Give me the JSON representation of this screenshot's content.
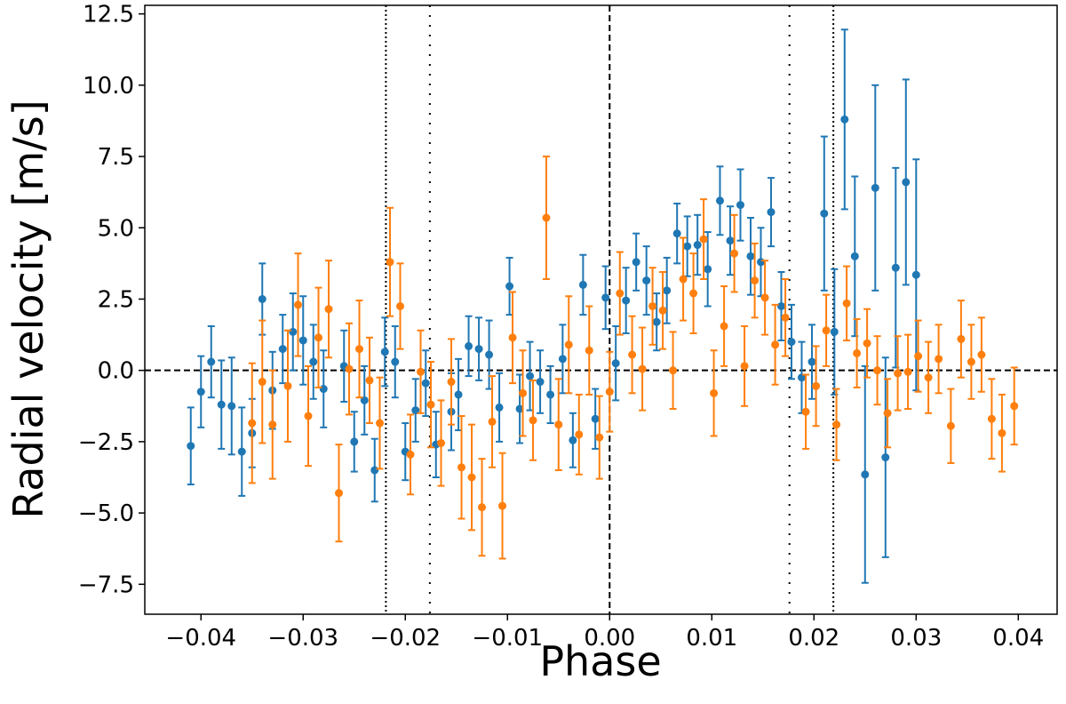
{
  "chart_data": {
    "type": "scatter",
    "title": "",
    "xlabel": "Phase",
    "ylabel": "Radial velocity [m/s]",
    "xlim": [
      -0.0455,
      0.0438
    ],
    "ylim": [
      -8.55,
      12.8
    ],
    "x_ticks": [
      -0.04,
      -0.03,
      -0.02,
      -0.01,
      0.0,
      0.01,
      0.02,
      0.03,
      0.04
    ],
    "x_tick_labels": [
      "−0.04",
      "−0.03",
      "−0.02",
      "−0.01",
      "0.00",
      "0.01",
      "0.02",
      "0.03",
      "0.04"
    ],
    "y_ticks": [
      -7.5,
      -5.0,
      -2.5,
      0.0,
      2.5,
      5.0,
      7.5,
      10.0,
      12.5
    ],
    "y_tick_labels": [
      "−7.5",
      "−5.0",
      "−2.5",
      "0.0",
      "2.5",
      "5.0",
      "7.5",
      "10.0",
      "12.5"
    ],
    "grid": false,
    "legend": "none",
    "reference_lines": {
      "horizontal_dashed_y": 0.0,
      "vertical_dashed_x": 0.0,
      "vertical_dotted_x": [
        -0.0219,
        -0.0176,
        0.0176,
        0.0219
      ]
    },
    "series": [
      {
        "color": "#1f77b4",
        "points": [
          {
            "x": -0.041,
            "y": -2.65,
            "err": 1.35
          },
          {
            "x": -0.04,
            "y": -0.75,
            "err": 1.25
          },
          {
            "x": -0.039,
            "y": 0.3,
            "err": 1.25
          },
          {
            "x": -0.038,
            "y": -1.2,
            "err": 1.55
          },
          {
            "x": -0.037,
            "y": -1.25,
            "err": 1.7
          },
          {
            "x": -0.036,
            "y": -2.85,
            "err": 1.55
          },
          {
            "x": -0.035,
            "y": -2.2,
            "err": 1.2
          },
          {
            "x": -0.034,
            "y": 2.5,
            "err": 1.25
          },
          {
            "x": -0.033,
            "y": -0.7,
            "err": 1.35
          },
          {
            "x": -0.032,
            "y": 0.75,
            "err": 1.2
          },
          {
            "x": -0.031,
            "y": 1.35,
            "err": 1.35
          },
          {
            "x": -0.03,
            "y": 1.05,
            "err": 1.55
          },
          {
            "x": -0.029,
            "y": 0.3,
            "err": 1.3
          },
          {
            "x": -0.028,
            "y": -0.65,
            "err": 1.35
          },
          {
            "x": -0.026,
            "y": 0.15,
            "err": 1.25
          },
          {
            "x": -0.025,
            "y": -2.5,
            "err": 1.05
          },
          {
            "x": -0.024,
            "y": -1.05,
            "err": 1.2
          },
          {
            "x": -0.023,
            "y": -3.5,
            "err": 1.1
          },
          {
            "x": -0.022,
            "y": 0.65,
            "err": 1.2
          },
          {
            "x": -0.021,
            "y": 0.3,
            "err": 1.25
          },
          {
            "x": -0.02,
            "y": -2.85,
            "err": 1.0
          },
          {
            "x": -0.019,
            "y": -1.4,
            "err": 1.1
          },
          {
            "x": -0.018,
            "y": -0.45,
            "err": 1.15
          },
          {
            "x": -0.017,
            "y": -2.6,
            "err": 1.15
          },
          {
            "x": -0.0155,
            "y": -1.45,
            "err": 1.35
          },
          {
            "x": -0.0148,
            "y": -0.85,
            "err": 1.25
          },
          {
            "x": -0.0138,
            "y": 0.85,
            "err": 1.05
          },
          {
            "x": -0.0128,
            "y": 0.75,
            "err": 1.1
          },
          {
            "x": -0.0118,
            "y": 0.55,
            "err": 1.2
          },
          {
            "x": -0.0108,
            "y": -1.3,
            "err": 1.2
          },
          {
            "x": -0.0098,
            "y": 2.95,
            "err": 1.0
          },
          {
            "x": -0.0088,
            "y": -1.35,
            "err": 1.2
          },
          {
            "x": -0.0078,
            "y": -0.2,
            "err": 1.2
          },
          {
            "x": -0.0068,
            "y": -0.4,
            "err": 1.1
          },
          {
            "x": -0.0058,
            "y": -0.85,
            "err": 1.0
          },
          {
            "x": -0.0046,
            "y": 0.4,
            "err": 1.2
          },
          {
            "x": -0.0036,
            "y": -2.45,
            "err": 0.95
          },
          {
            "x": -0.0026,
            "y": 3.0,
            "err": 1.05
          },
          {
            "x": -0.0014,
            "y": -1.7,
            "err": 1.05
          },
          {
            "x": -0.0004,
            "y": 2.55,
            "err": 1.1
          },
          {
            "x": 0.0006,
            "y": 0.25,
            "err": 1.3
          },
          {
            "x": 0.0016,
            "y": 2.45,
            "err": 1.15
          },
          {
            "x": 0.0026,
            "y": 3.8,
            "err": 1.0
          },
          {
            "x": 0.0036,
            "y": 3.15,
            "err": 1.2
          },
          {
            "x": 0.0046,
            "y": 1.7,
            "err": 1.0
          },
          {
            "x": 0.0056,
            "y": 2.8,
            "err": 1.15
          },
          {
            "x": 0.0066,
            "y": 4.8,
            "err": 1.05
          },
          {
            "x": 0.0076,
            "y": 4.35,
            "err": 1.05
          },
          {
            "x": 0.0086,
            "y": 4.4,
            "err": 1.05
          },
          {
            "x": 0.0096,
            "y": 3.55,
            "err": 1.3
          },
          {
            "x": 0.0108,
            "y": 5.95,
            "err": 1.2
          },
          {
            "x": 0.0118,
            "y": 4.55,
            "err": 1.2
          },
          {
            "x": 0.0128,
            "y": 5.8,
            "err": 1.25
          },
          {
            "x": 0.0138,
            "y": 4.0,
            "err": 1.35
          },
          {
            "x": 0.0148,
            "y": 3.8,
            "err": 1.2
          },
          {
            "x": 0.0158,
            "y": 5.55,
            "err": 1.2
          },
          {
            "x": 0.0168,
            "y": 2.25,
            "err": 1.2
          },
          {
            "x": 0.0178,
            "y": 1.0,
            "err": 1.3
          },
          {
            "x": 0.0188,
            "y": -0.25,
            "err": 1.25
          },
          {
            "x": 0.0198,
            "y": 0.3,
            "err": 1.3
          },
          {
            "x": 0.021,
            "y": 5.5,
            "err": 2.7
          },
          {
            "x": 0.022,
            "y": 1.35,
            "err": 2.2
          },
          {
            "x": 0.023,
            "y": 8.8,
            "err": 3.15
          },
          {
            "x": 0.024,
            "y": 4.0,
            "err": 2.8
          },
          {
            "x": 0.025,
            "y": -3.65,
            "err": 3.8
          },
          {
            "x": 0.026,
            "y": 6.4,
            "err": 3.6
          },
          {
            "x": 0.027,
            "y": -3.05,
            "err": 3.5
          },
          {
            "x": 0.028,
            "y": 3.6,
            "err": 3.5
          },
          {
            "x": 0.029,
            "y": 6.6,
            "err": 3.6
          },
          {
            "x": 0.03,
            "y": 3.35,
            "err": 4.05
          }
        ]
      },
      {
        "color": "#ff7f0e",
        "points": [
          {
            "x": -0.035,
            "y": -1.85,
            "err": 2.1
          },
          {
            "x": -0.034,
            "y": -0.4,
            "err": 2.15
          },
          {
            "x": -0.033,
            "y": -1.9,
            "err": 1.9
          },
          {
            "x": -0.0315,
            "y": -0.55,
            "err": 1.95
          },
          {
            "x": -0.0305,
            "y": 2.3,
            "err": 1.8
          },
          {
            "x": -0.0295,
            "y": -1.6,
            "err": 1.75
          },
          {
            "x": -0.0285,
            "y": 1.15,
            "err": 1.75
          },
          {
            "x": -0.0275,
            "y": 2.15,
            "err": 1.7
          },
          {
            "x": -0.0265,
            "y": -4.3,
            "err": 1.7
          },
          {
            "x": -0.0255,
            "y": 0.05,
            "err": 1.6
          },
          {
            "x": -0.0245,
            "y": 0.75,
            "err": 1.7
          },
          {
            "x": -0.0235,
            "y": -0.35,
            "err": 1.5
          },
          {
            "x": -0.0225,
            "y": -1.85,
            "err": 1.6
          },
          {
            "x": -0.0215,
            "y": 3.8,
            "err": 1.9
          },
          {
            "x": -0.0205,
            "y": 2.25,
            "err": 1.5
          },
          {
            "x": -0.0195,
            "y": -2.95,
            "err": 1.4
          },
          {
            "x": -0.0185,
            "y": -0.05,
            "err": 1.45
          },
          {
            "x": -0.0175,
            "y": -1.2,
            "err": 1.5
          },
          {
            "x": -0.0165,
            "y": -2.55,
            "err": 1.5
          },
          {
            "x": -0.0155,
            "y": -0.4,
            "err": 1.5
          },
          {
            "x": -0.0145,
            "y": -3.4,
            "err": 1.8
          },
          {
            "x": -0.0135,
            "y": -3.75,
            "err": 1.85
          },
          {
            "x": -0.0125,
            "y": -4.8,
            "err": 1.7
          },
          {
            "x": -0.0115,
            "y": -1.8,
            "err": 1.6
          },
          {
            "x": -0.0105,
            "y": -4.75,
            "err": 1.85
          },
          {
            "x": -0.0095,
            "y": 1.15,
            "err": 1.6
          },
          {
            "x": -0.0085,
            "y": -0.8,
            "err": 1.5
          },
          {
            "x": -0.0075,
            "y": -1.75,
            "err": 1.4
          },
          {
            "x": -0.0062,
            "y": 5.35,
            "err": 2.15
          },
          {
            "x": -0.005,
            "y": -1.9,
            "err": 1.6
          },
          {
            "x": -0.004,
            "y": 0.9,
            "err": 1.7
          },
          {
            "x": -0.003,
            "y": -2.25,
            "err": 1.4
          },
          {
            "x": -0.002,
            "y": 0.7,
            "err": 1.55
          },
          {
            "x": -0.001,
            "y": -2.35,
            "err": 1.45
          },
          {
            "x": 0.0,
            "y": -0.75,
            "err": 1.4
          },
          {
            "x": 0.001,
            "y": 2.7,
            "err": 1.45
          },
          {
            "x": 0.0022,
            "y": 0.55,
            "err": 1.35
          },
          {
            "x": 0.0032,
            "y": 0.05,
            "err": 1.45
          },
          {
            "x": 0.0042,
            "y": 2.25,
            "err": 1.35
          },
          {
            "x": 0.0052,
            "y": 2.1,
            "err": 1.35
          },
          {
            "x": 0.0062,
            "y": 0.0,
            "err": 1.35
          },
          {
            "x": 0.0072,
            "y": 3.2,
            "err": 1.45
          },
          {
            "x": 0.0082,
            "y": 2.7,
            "err": 1.4
          },
          {
            "x": 0.0092,
            "y": 4.6,
            "err": 1.4
          },
          {
            "x": 0.0102,
            "y": -0.8,
            "err": 1.5
          },
          {
            "x": 0.0112,
            "y": 1.55,
            "err": 1.4
          },
          {
            "x": 0.0122,
            "y": 4.1,
            "err": 1.35
          },
          {
            "x": 0.0132,
            "y": 0.15,
            "err": 1.4
          },
          {
            "x": 0.0142,
            "y": 3.15,
            "err": 1.3
          },
          {
            "x": 0.0152,
            "y": 2.55,
            "err": 1.3
          },
          {
            "x": 0.0162,
            "y": 0.9,
            "err": 1.4
          },
          {
            "x": 0.0172,
            "y": 1.85,
            "err": 1.35
          },
          {
            "x": 0.0192,
            "y": -1.45,
            "err": 1.3
          },
          {
            "x": 0.0202,
            "y": -0.55,
            "err": 1.4
          },
          {
            "x": 0.0212,
            "y": 1.4,
            "err": 1.25
          },
          {
            "x": 0.0222,
            "y": -1.9,
            "err": 1.25
          },
          {
            "x": 0.0232,
            "y": 2.35,
            "err": 1.3
          },
          {
            "x": 0.0242,
            "y": 0.6,
            "err": 1.2
          },
          {
            "x": 0.0252,
            "y": 0.95,
            "err": 1.2
          },
          {
            "x": 0.0262,
            "y": 0.0,
            "err": 1.2
          },
          {
            "x": 0.0272,
            "y": -1.5,
            "err": 1.2
          },
          {
            "x": 0.0282,
            "y": -0.1,
            "err": 1.3
          },
          {
            "x": 0.0292,
            "y": -0.05,
            "err": 1.3
          },
          {
            "x": 0.0302,
            "y": 0.5,
            "err": 1.25
          },
          {
            "x": 0.0312,
            "y": -0.25,
            "err": 1.25
          },
          {
            "x": 0.0322,
            "y": 0.4,
            "err": 1.2
          },
          {
            "x": 0.0334,
            "y": -1.95,
            "err": 1.3
          },
          {
            "x": 0.0344,
            "y": 1.1,
            "err": 1.35
          },
          {
            "x": 0.0354,
            "y": 0.3,
            "err": 1.3
          },
          {
            "x": 0.0364,
            "y": 0.55,
            "err": 1.3
          },
          {
            "x": 0.0374,
            "y": -1.7,
            "err": 1.4
          },
          {
            "x": 0.0384,
            "y": -2.2,
            "err": 1.35
          },
          {
            "x": 0.0396,
            "y": -1.25,
            "err": 1.35
          }
        ]
      }
    ]
  }
}
